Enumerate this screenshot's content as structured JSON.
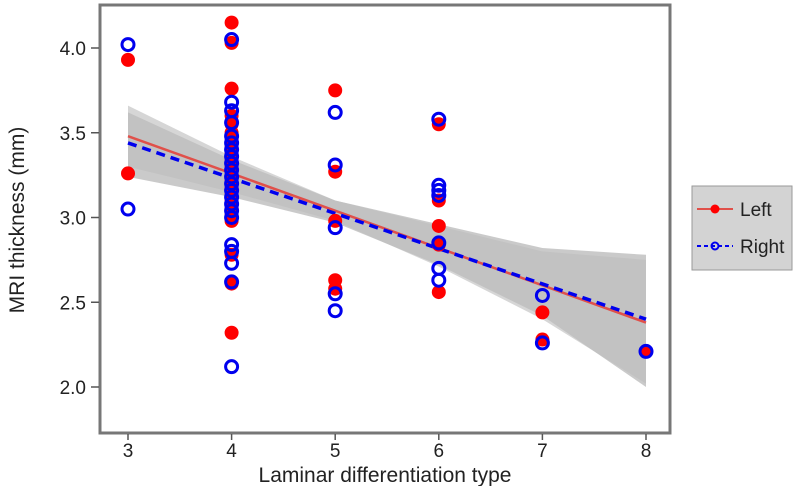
{
  "chart_data": {
    "type": "scatter",
    "title": "",
    "xlabel": "Laminar differentiation type",
    "ylabel": "MRI thickness (mm)",
    "xlim": [
      2.75,
      8.25
    ],
    "ylim": [
      1.85,
      4.25
    ],
    "xticks": [
      "3",
      "4",
      "5",
      "6",
      "7",
      "8"
    ],
    "yticks": [
      "2.0",
      "2.5",
      "3.0",
      "3.5",
      "4.0"
    ],
    "legend_position": "right",
    "series": [
      {
        "name": "Left",
        "color": "#ff0000",
        "marker": "filled-circle",
        "line_style": "solid",
        "line_color": "#e0504a",
        "points": [
          [
            3,
            3.93
          ],
          [
            3,
            3.26
          ],
          [
            4,
            4.15
          ],
          [
            4,
            4.03
          ],
          [
            4,
            3.76
          ],
          [
            4,
            3.6
          ],
          [
            4,
            3.55
          ],
          [
            4,
            3.5
          ],
          [
            4,
            3.46
          ],
          [
            4,
            3.42
          ],
          [
            4,
            3.38
          ],
          [
            4,
            3.34
          ],
          [
            4,
            3.3
          ],
          [
            4,
            3.26
          ],
          [
            4,
            3.22
          ],
          [
            4,
            3.18
          ],
          [
            4,
            3.14
          ],
          [
            4,
            3.1
          ],
          [
            4,
            3.06
          ],
          [
            4,
            3.02
          ],
          [
            4,
            2.98
          ],
          [
            4,
            2.78
          ],
          [
            4,
            2.61
          ],
          [
            4,
            2.32
          ],
          [
            5,
            3.75
          ],
          [
            5,
            3.27
          ],
          [
            5,
            2.98
          ],
          [
            5,
            2.63
          ],
          [
            5,
            2.58
          ],
          [
            6,
            3.55
          ],
          [
            6,
            3.1
          ],
          [
            6,
            2.95
          ],
          [
            6,
            2.84
          ],
          [
            6,
            2.56
          ],
          [
            7,
            2.44
          ],
          [
            7,
            2.28
          ],
          [
            8,
            2.21
          ]
        ],
        "fit": [
          [
            3,
            3.48
          ],
          [
            8,
            2.38
          ]
        ],
        "ci": [
          [
            3,
            3.3,
            3.66
          ],
          [
            4,
            3.15,
            3.36
          ],
          [
            5,
            2.98,
            3.1
          ],
          [
            6,
            2.71,
            2.95
          ],
          [
            7,
            2.4,
            2.8
          ],
          [
            8,
            2.02,
            2.75
          ]
        ]
      },
      {
        "name": "Right",
        "color": "#0000ee",
        "marker": "open-circle",
        "line_style": "dashed",
        "line_color": "#0000ee",
        "points": [
          [
            3,
            4.02
          ],
          [
            3,
            3.05
          ],
          [
            4,
            4.05
          ],
          [
            4,
            3.68
          ],
          [
            4,
            3.63
          ],
          [
            4,
            3.56
          ],
          [
            4,
            3.48
          ],
          [
            4,
            3.44
          ],
          [
            4,
            3.4
          ],
          [
            4,
            3.36
          ],
          [
            4,
            3.32
          ],
          [
            4,
            3.28
          ],
          [
            4,
            3.24
          ],
          [
            4,
            3.2
          ],
          [
            4,
            3.16
          ],
          [
            4,
            3.12
          ],
          [
            4,
            3.08
          ],
          [
            4,
            3.04
          ],
          [
            4,
            3.0
          ],
          [
            4,
            2.84
          ],
          [
            4,
            2.8
          ],
          [
            4,
            2.73
          ],
          [
            4,
            2.62
          ],
          [
            4,
            2.12
          ],
          [
            5,
            3.62
          ],
          [
            5,
            3.31
          ],
          [
            5,
            2.94
          ],
          [
            5,
            2.55
          ],
          [
            5,
            2.45
          ],
          [
            6,
            3.58
          ],
          [
            6,
            3.19
          ],
          [
            6,
            3.16
          ],
          [
            6,
            3.13
          ],
          [
            6,
            2.85
          ],
          [
            6,
            2.7
          ],
          [
            6,
            2.63
          ],
          [
            7,
            2.54
          ],
          [
            7,
            2.26
          ],
          [
            8,
            2.21
          ]
        ],
        "fit": [
          [
            3,
            3.44
          ],
          [
            8,
            2.4
          ]
        ],
        "ci": [
          [
            3,
            3.24,
            3.62
          ],
          [
            4,
            3.12,
            3.34
          ],
          [
            5,
            2.97,
            3.1
          ],
          [
            6,
            2.72,
            2.96
          ],
          [
            7,
            2.42,
            2.82
          ],
          [
            8,
            2.0,
            2.78
          ]
        ]
      }
    ]
  }
}
